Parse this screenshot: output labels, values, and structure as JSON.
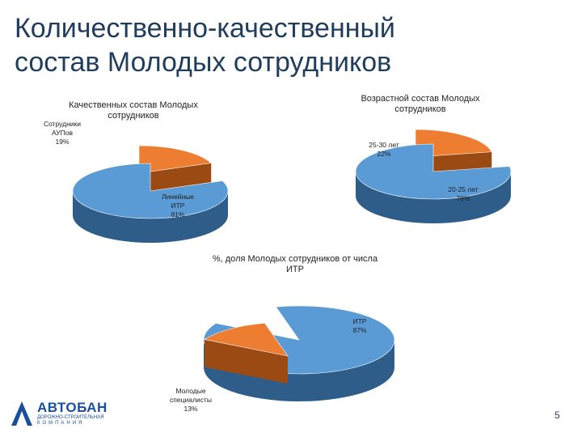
{
  "slide": {
    "title_line1": "Количественно-качественный",
    "title_line2": "состав Молодых сотрудников",
    "page_number": "5"
  },
  "logo": {
    "name": "АВТОБАН",
    "subtitle1": "ДОРОЖНО-СТРОИТЕЛЬНАЯ",
    "subtitle2": "КОМПАНИЯ"
  },
  "colors": {
    "blue": "#5b9bd5",
    "blue_dark": "#2f5d8a",
    "orange": "#ed7d31",
    "orange_dark": "#9c4a14"
  },
  "chart_data": [
    {
      "type": "pie",
      "title_line1": "Качественных состав Молодых",
      "title_line2": "сотрудников",
      "slices": [
        {
          "label_line1": "Сотрудники",
          "label_line2": "АУПов",
          "value": 19,
          "value_label": "19%",
          "color": "#ed7d31"
        },
        {
          "label_line1": "Линейные",
          "label_line2": "ИТР",
          "value": 81,
          "value_label": "81%",
          "color": "#5b9bd5"
        }
      ]
    },
    {
      "type": "pie",
      "title_line1": "Возрастной состав Молодых",
      "title_line2": "сотрудников",
      "slices": [
        {
          "label_line1": "25-30 лет",
          "value": 22,
          "value_label": "22%",
          "color": "#ed7d31"
        },
        {
          "label_line1": "20-25 лет",
          "value": 78,
          "value_label": "78%",
          "color": "#5b9bd5"
        }
      ]
    },
    {
      "type": "pie",
      "title_line1": "%, доля Молодых сотрудников от числа",
      "title_line2": "ИТР",
      "slices": [
        {
          "label_line1": "ИТР",
          "value": 87,
          "value_label": "87%",
          "color": "#5b9bd5"
        },
        {
          "label_line1": "Молодые",
          "label_line2": "специалисты",
          "value": 13,
          "value_label": "13%",
          "color": "#ed7d31"
        }
      ]
    }
  ]
}
